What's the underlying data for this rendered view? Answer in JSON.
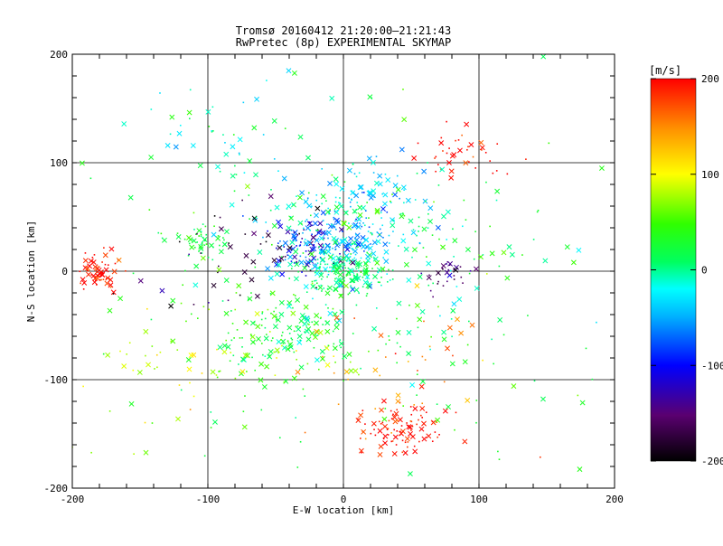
{
  "chart_data": {
    "type": "scatter",
    "title": "Tromsø 20160412 21:20:00–21:21:43",
    "subtitle": "RwPretec (8p) EXPERIMENTAL SKYMAP",
    "xlabel": "E-W location [km]",
    "ylabel": "N-S location [km]",
    "xlim": [
      -200,
      200
    ],
    "ylim": [
      -200,
      200
    ],
    "xticks": [
      "-200",
      "-100",
      "0",
      "100",
      "200"
    ],
    "yticks": [
      "-200",
      "-100",
      "0",
      "100",
      "200"
    ],
    "grid": true,
    "colorbar": {
      "label": "[m/s]",
      "range": [
        -200,
        200
      ],
      "ticks": [
        "200",
        "100",
        "0",
        "-100",
        "-200"
      ],
      "colormap": "rainbow (black → purple → blue → cyan → green → yellow → orange → red)",
      "placement": "right"
    },
    "marker_kinds": [
      "x",
      "dot"
    ],
    "clusters": [
      {
        "x": -180,
        "y": -1,
        "spread": 9,
        "velocity": 200,
        "count": 60
      },
      {
        "x": -103,
        "y": 28,
        "spread": 9,
        "velocity": 25,
        "count": 45
      },
      {
        "x": -30,
        "y": 25,
        "spread": 14,
        "velocity": -110,
        "count": 70
      },
      {
        "x": -5,
        "y": 30,
        "spread": 22,
        "velocity": -55,
        "count": 150
      },
      {
        "x": 10,
        "y": 70,
        "spread": 25,
        "velocity": -40,
        "count": 70
      },
      {
        "x": 0,
        "y": 0,
        "spread": 15,
        "velocity": 5,
        "count": 140
      },
      {
        "x": -40,
        "y": -50,
        "spread": 30,
        "velocity": 25,
        "count": 120
      },
      {
        "x": -50,
        "y": -80,
        "spread": 30,
        "velocity": 70,
        "count": 60
      },
      {
        "x": 40,
        "y": -145,
        "spread": 15,
        "velocity": 195,
        "count": 95
      },
      {
        "x": 75,
        "y": -3,
        "spread": 10,
        "velocity": -150,
        "count": 30
      },
      {
        "x": 85,
        "y": 110,
        "spread": 15,
        "velocity": 200,
        "count": 40
      },
      {
        "x": 20,
        "y": 20,
        "spread": 50,
        "velocity": 0,
        "count": 160
      },
      {
        "x": -85,
        "y": 120,
        "spread": 25,
        "velocity": -10,
        "count": 40
      },
      {
        "x": -80,
        "y": 15,
        "spread": 35,
        "velocity": -170,
        "count": 45
      },
      {
        "x": 0,
        "y": -20,
        "spread": 100,
        "velocity": 30,
        "count": 240
      },
      {
        "x": 60,
        "y": -90,
        "spread": 40,
        "velocity": 150,
        "count": 40
      },
      {
        "x": -140,
        "y": -90,
        "spread": 35,
        "velocity": 90,
        "count": 40
      }
    ]
  }
}
